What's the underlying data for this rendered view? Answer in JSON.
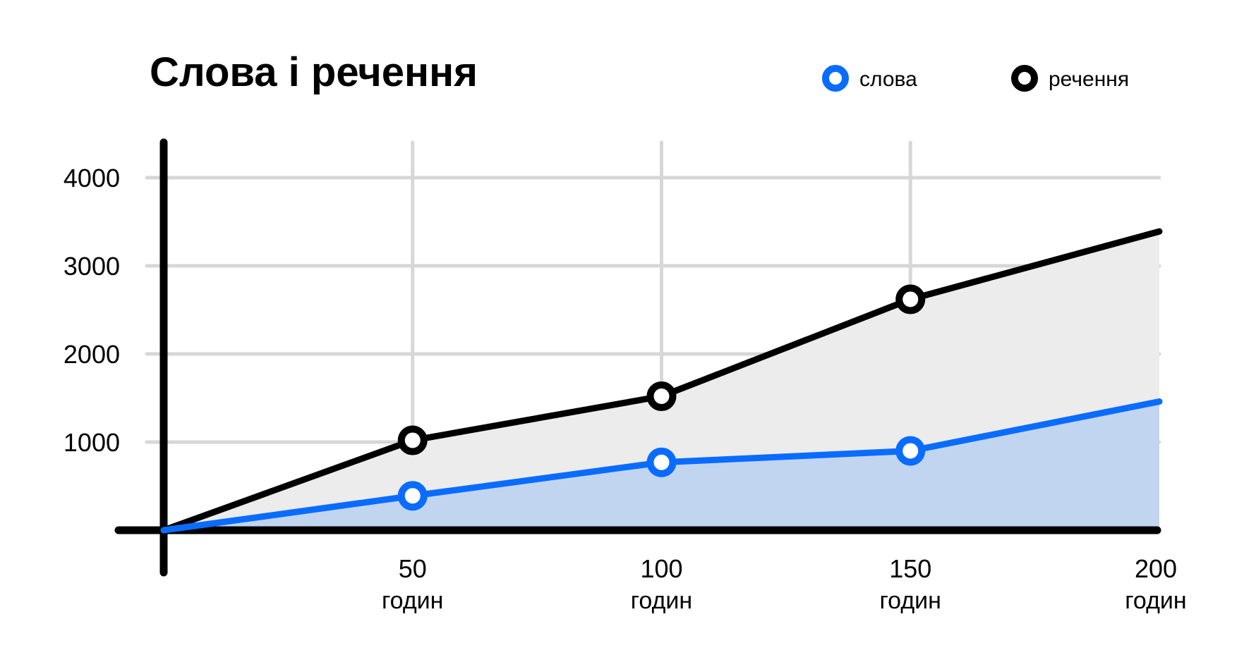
{
  "colors": {
    "words": "#0a6cff",
    "sentences": "#000000",
    "words_fill": "#c2d5f0",
    "sentences_fill": "#ececec",
    "grid": "#d7d7d7",
    "axis": "#000000"
  },
  "chart_data": {
    "type": "area",
    "title": "Слова і речення",
    "legend_position": "top-right",
    "grid": true,
    "x": [
      0,
      50,
      100,
      150,
      200
    ],
    "x_tick_values": [
      50,
      100,
      150,
      200
    ],
    "x_tick_labels": [
      "50",
      "100",
      "150",
      "200"
    ],
    "x_unit_label": "годин",
    "y_ticks": [
      1000,
      2000,
      3000,
      4000
    ],
    "y_tick_labels": [
      "1000",
      "2000",
      "3000",
      "4000"
    ],
    "xlim": [
      0,
      200
    ],
    "ylim": [
      0,
      4000
    ],
    "series": [
      {
        "name": "слова",
        "key": "words",
        "values": [
          0,
          390,
          770,
          900,
          1460
        ],
        "markers": [
          false,
          true,
          true,
          true,
          false
        ]
      },
      {
        "name": "речення",
        "key": "sentences",
        "values": [
          0,
          1020,
          1520,
          2620,
          3390
        ],
        "markers": [
          false,
          true,
          true,
          true,
          false
        ]
      }
    ]
  }
}
